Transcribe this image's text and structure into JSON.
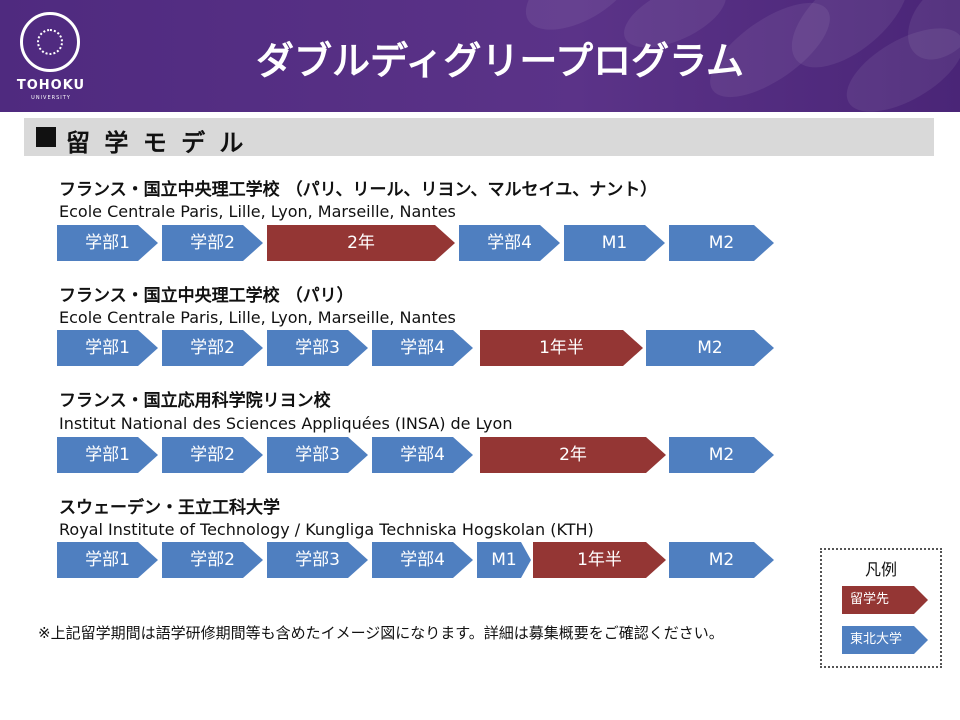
{
  "header": {
    "title": "ダブルディグリープログラム",
    "logo_name": "TOHOKU",
    "logo_sub": "UNIVERSITY",
    "color": "#4f2a7f"
  },
  "section": {
    "label": "留 学 モ デ ル"
  },
  "programs": [
    {
      "title": "フランス・国立中央理工学校 （パリ、リール、リヨン、マルセイユ、ナント）",
      "subtitle": "Ecole Centrale Paris, Lille, Lyon, Marseille, Nantes",
      "steps": [
        {
          "label": "学部1",
          "kind": "home"
        },
        {
          "label": "学部2",
          "kind": "home"
        },
        {
          "label": "2年",
          "kind": "abroad"
        },
        {
          "label": "学部4",
          "kind": "home"
        },
        {
          "label": "M1",
          "kind": "home"
        },
        {
          "label": "M2",
          "kind": "home"
        }
      ]
    },
    {
      "title": "フランス・国立中央理工学校 （パリ）",
      "subtitle": "Ecole Centrale Paris, Lille, Lyon, Marseille, Nantes",
      "steps": [
        {
          "label": "学部1",
          "kind": "home"
        },
        {
          "label": "学部2",
          "kind": "home"
        },
        {
          "label": "学部3",
          "kind": "home"
        },
        {
          "label": "学部4",
          "kind": "home"
        },
        {
          "label": "1年半",
          "kind": "abroad"
        },
        {
          "label": "M2",
          "kind": "home"
        }
      ]
    },
    {
      "title": "フランス・国立応用科学院リヨン校",
      "subtitle": "Institut National des Sciences Appliquées (INSA) de Lyon",
      "steps": [
        {
          "label": "学部1",
          "kind": "home"
        },
        {
          "label": "学部2",
          "kind": "home"
        },
        {
          "label": "学部3",
          "kind": "home"
        },
        {
          "label": "学部4",
          "kind": "home"
        },
        {
          "label": "2年",
          "kind": "abroad"
        },
        {
          "label": "M2",
          "kind": "home"
        }
      ]
    },
    {
      "title": "スウェーデン・王立工科大学",
      "subtitle": "Royal Institute of Technology / Kungliga Techniska Hogskolan (KTH)",
      "steps": [
        {
          "label": "学部1",
          "kind": "home"
        },
        {
          "label": "学部2",
          "kind": "home"
        },
        {
          "label": "学部3",
          "kind": "home"
        },
        {
          "label": "学部4",
          "kind": "home"
        },
        {
          "label": "M1",
          "kind": "home"
        },
        {
          "label": "1年半",
          "kind": "abroad"
        },
        {
          "label": "M2",
          "kind": "home"
        }
      ]
    }
  ],
  "note": "※上記留学期間は語学研修期間等も含めたイメージ図になります。詳細は募集概要をご確認ください。",
  "legend": {
    "title": "凡例",
    "abroad_label": "留学先",
    "home_label": "東北大学",
    "abroad_color": "#943634",
    "home_color": "#4f7fc0"
  }
}
